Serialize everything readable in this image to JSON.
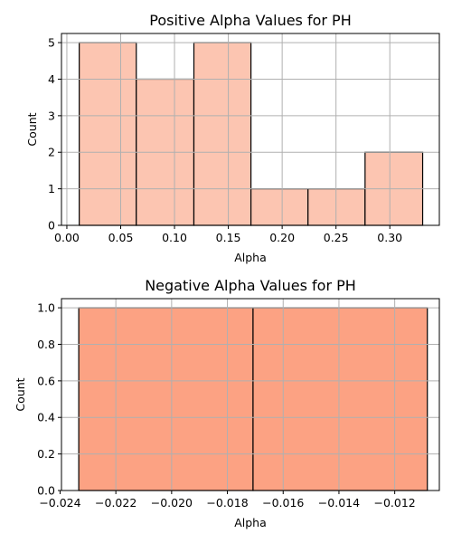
{
  "colors": {
    "positive_bar": "#fcc5b1",
    "negative_bar": "#fca283",
    "grid": "#b0b0b0"
  },
  "chart_data": [
    {
      "type": "bar",
      "title": "Positive Alpha Values for PH",
      "xlabel": "Alpha",
      "ylabel": "Count",
      "grid": true,
      "xlim": [
        -0.005,
        0.346
      ],
      "ylim": [
        0,
        5.25
      ],
      "xticks": [
        0.0,
        0.05,
        0.1,
        0.15,
        0.2,
        0.25,
        0.3
      ],
      "xtick_labels": [
        "0.00",
        "0.05",
        "0.10",
        "0.15",
        "0.20",
        "0.25",
        "0.30"
      ],
      "yticks": [
        0,
        1,
        2,
        3,
        4,
        5
      ],
      "ytick_labels": [
        "0",
        "1",
        "2",
        "3",
        "4",
        "5"
      ],
      "bin_edges": [
        0.0115,
        0.0645,
        0.118,
        0.171,
        0.224,
        0.277,
        0.3305
      ],
      "values": [
        5,
        4,
        5,
        1,
        1,
        2
      ],
      "color": "#fcc5b1"
    },
    {
      "type": "bar",
      "title": "Negative Alpha Values for PH",
      "xlabel": "Alpha",
      "ylabel": "Count",
      "grid": true,
      "xlim": [
        -0.02395,
        -0.0104
      ],
      "ylim": [
        0,
        1.05
      ],
      "xticks": [
        -0.024,
        -0.022,
        -0.02,
        -0.018,
        -0.016,
        -0.014,
        -0.012
      ],
      "xtick_labels": [
        "−0.024",
        "−0.022",
        "−0.020",
        "−0.018",
        "−0.016",
        "−0.014",
        "−0.012"
      ],
      "yticks": [
        0,
        0.2,
        0.4,
        0.6,
        0.8,
        1.0
      ],
      "ytick_labels": [
        "0.0",
        "0.2",
        "0.4",
        "0.6",
        "0.8",
        "1.0"
      ],
      "bin_edges": [
        -0.02333,
        -0.01708,
        -0.01083
      ],
      "values": [
        1,
        1
      ],
      "color": "#fca283"
    }
  ]
}
